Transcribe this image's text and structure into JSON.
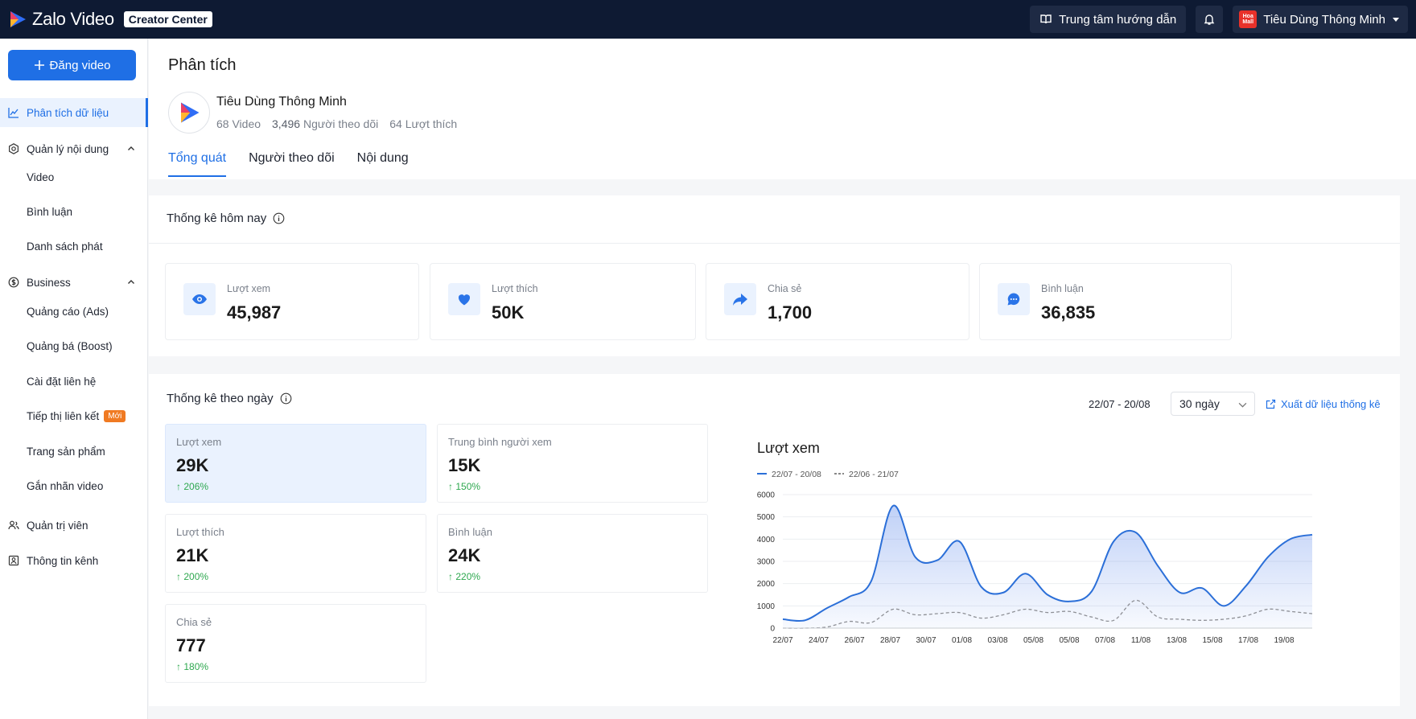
{
  "topbar": {
    "brand": "Zalo Video",
    "badge": "Creator Center",
    "help": "Trung tâm hướng dẫn",
    "user": "Tiêu Dùng Thông Minh",
    "user_avatar_text": "Hoa Mall"
  },
  "sidebar": {
    "upload": "Đăng video",
    "items": [
      {
        "label": "Phân tích dữ liệu",
        "icon": "chart-line-icon",
        "active": true
      },
      {
        "label": "Quản lý nội dung",
        "icon": "gear-icon"
      },
      {
        "label": "Business",
        "icon": "dollar-icon"
      },
      {
        "label": "Quản trị viên",
        "icon": "people-icon"
      },
      {
        "label": "Thông tin kênh",
        "icon": "id-card-icon"
      }
    ],
    "content_sub": [
      "Video",
      "Bình luận",
      "Danh sách phát"
    ],
    "business_sub": [
      "Quảng cáo (Ads)",
      "Quảng bá (Boost)",
      "Cài đặt liên hệ",
      "Tiếp thị liên kết",
      "Trang sản phẩm",
      "Gắn nhãn video"
    ],
    "new_badge": "Mới"
  },
  "header": {
    "title": "Phân tích",
    "channel": "Tiêu Dùng Thông Minh",
    "videos": "68 Video",
    "followers": "3,496",
    "followers_label": "Người theo dõi",
    "likes": "64 Lượt thích",
    "tabs": [
      "Tổng quát",
      "Người theo dõi",
      "Nội dung"
    ]
  },
  "today": {
    "title": "Thống kê hôm nay",
    "stats": [
      {
        "label": "Lượt xem",
        "value": "45,987",
        "icon": "eye-icon"
      },
      {
        "label": "Lượt thích",
        "value": "50K",
        "icon": "heart-icon"
      },
      {
        "label": "Chia sẻ",
        "value": "1,700",
        "icon": "share-icon"
      },
      {
        "label": "Bình luận",
        "value": "36,835",
        "icon": "comment-icon"
      }
    ]
  },
  "daily": {
    "title": "Thống kê theo ngày",
    "range": "22/07 - 20/08",
    "period": "30 ngày",
    "export": "Xuất dữ liệu thống kê",
    "metrics": [
      {
        "label": "Lượt xem",
        "value": "29K",
        "pct": "206%"
      },
      {
        "label": "Trung bình người xem",
        "value": "15K",
        "pct": "150%"
      },
      {
        "label": "Lượt thích",
        "value": "21K",
        "pct": "200%"
      },
      {
        "label": "Bình luận",
        "value": "24K",
        "pct": "220%"
      },
      {
        "label": "Chia sẻ",
        "value": "777",
        "pct": "180%"
      }
    ]
  },
  "colors": {
    "accent": "#1f6fe5",
    "topbar": "#0e1a33",
    "up": "#2ea84f"
  },
  "chart_data": {
    "type": "area",
    "title": "Lượt xem",
    "ylim": [
      0,
      6000
    ],
    "yticks": [
      0,
      1000,
      2000,
      3000,
      4000,
      5000,
      6000
    ],
    "xticks": [
      "22/07",
      "24/07",
      "26/07",
      "28/07",
      "30/07",
      "01/08",
      "03/08",
      "05/08",
      "05/08",
      "07/08",
      "11/08",
      "13/08",
      "15/08",
      "17/08",
      "19/08"
    ],
    "series": [
      {
        "name": "22/07 - 20/08",
        "style": "solid",
        "values": [
          400,
          350,
          900,
          1400,
          2100,
          5500,
          3200,
          3050,
          3900,
          1850,
          1600,
          2450,
          1500,
          1200,
          1650,
          3900,
          4300,
          2800,
          1600,
          1800,
          1000,
          1900,
          3200,
          4000,
          4200
        ]
      },
      {
        "name": "22/06 - 21/07",
        "style": "dashed",
        "values": [
          0,
          0,
          50,
          300,
          250,
          850,
          600,
          650,
          700,
          450,
          600,
          850,
          700,
          750,
          500,
          350,
          1250,
          500,
          400,
          350,
          400,
          550,
          850,
          750,
          650
        ]
      }
    ]
  }
}
